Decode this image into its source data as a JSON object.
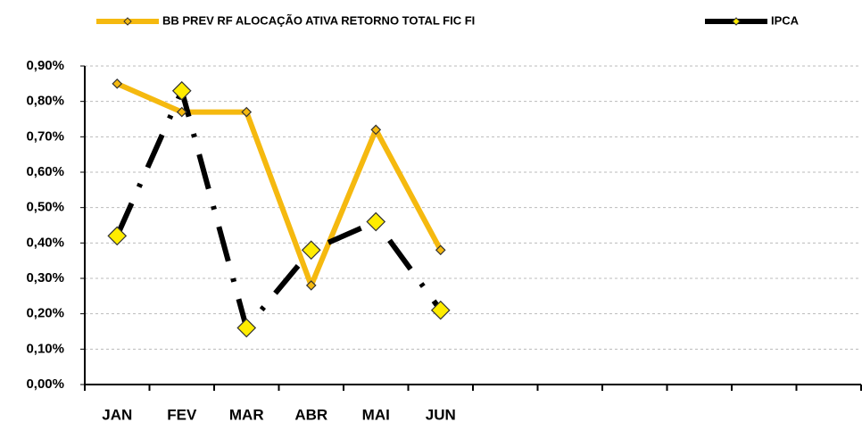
{
  "chart_data": {
    "type": "line",
    "categories": [
      "JAN",
      "FEV",
      "MAR",
      "ABR",
      "MAI",
      "JUN",
      null,
      null,
      null,
      null,
      null,
      null
    ],
    "series": [
      {
        "name": "BB PREV RF ALOCAÇÃO ATIVA RETORNO TOTAL FIC FI",
        "color": "#f5b90f",
        "values": [
          0.85,
          0.77,
          0.77,
          0.28,
          0.72,
          0.38,
          null,
          null,
          null,
          null,
          null,
          null
        ]
      },
      {
        "name": "IPCA",
        "color": "#000000",
        "values": [
          0.42,
          0.83,
          0.16,
          0.38,
          0.46,
          0.21,
          null,
          null,
          null,
          null,
          null,
          null
        ]
      }
    ],
    "ylim": [
      0,
      0.9
    ],
    "yticks": [
      {
        "value": 0,
        "label": "0,00%"
      },
      {
        "value": 0.1,
        "label": "0,10%"
      },
      {
        "value": 0.2,
        "label": "0,20%"
      },
      {
        "value": 0.3,
        "label": "0,30%"
      },
      {
        "value": 0.4,
        "label": "0,40%"
      },
      {
        "value": 0.5,
        "label": "0,50%"
      },
      {
        "value": 0.6,
        "label": "0,60%"
      },
      {
        "value": 0.7,
        "label": "0,70%"
      },
      {
        "value": 0.8,
        "label": "0,80%"
      },
      {
        "value": 0.9,
        "label": "0,90%"
      }
    ],
    "grid": true
  }
}
